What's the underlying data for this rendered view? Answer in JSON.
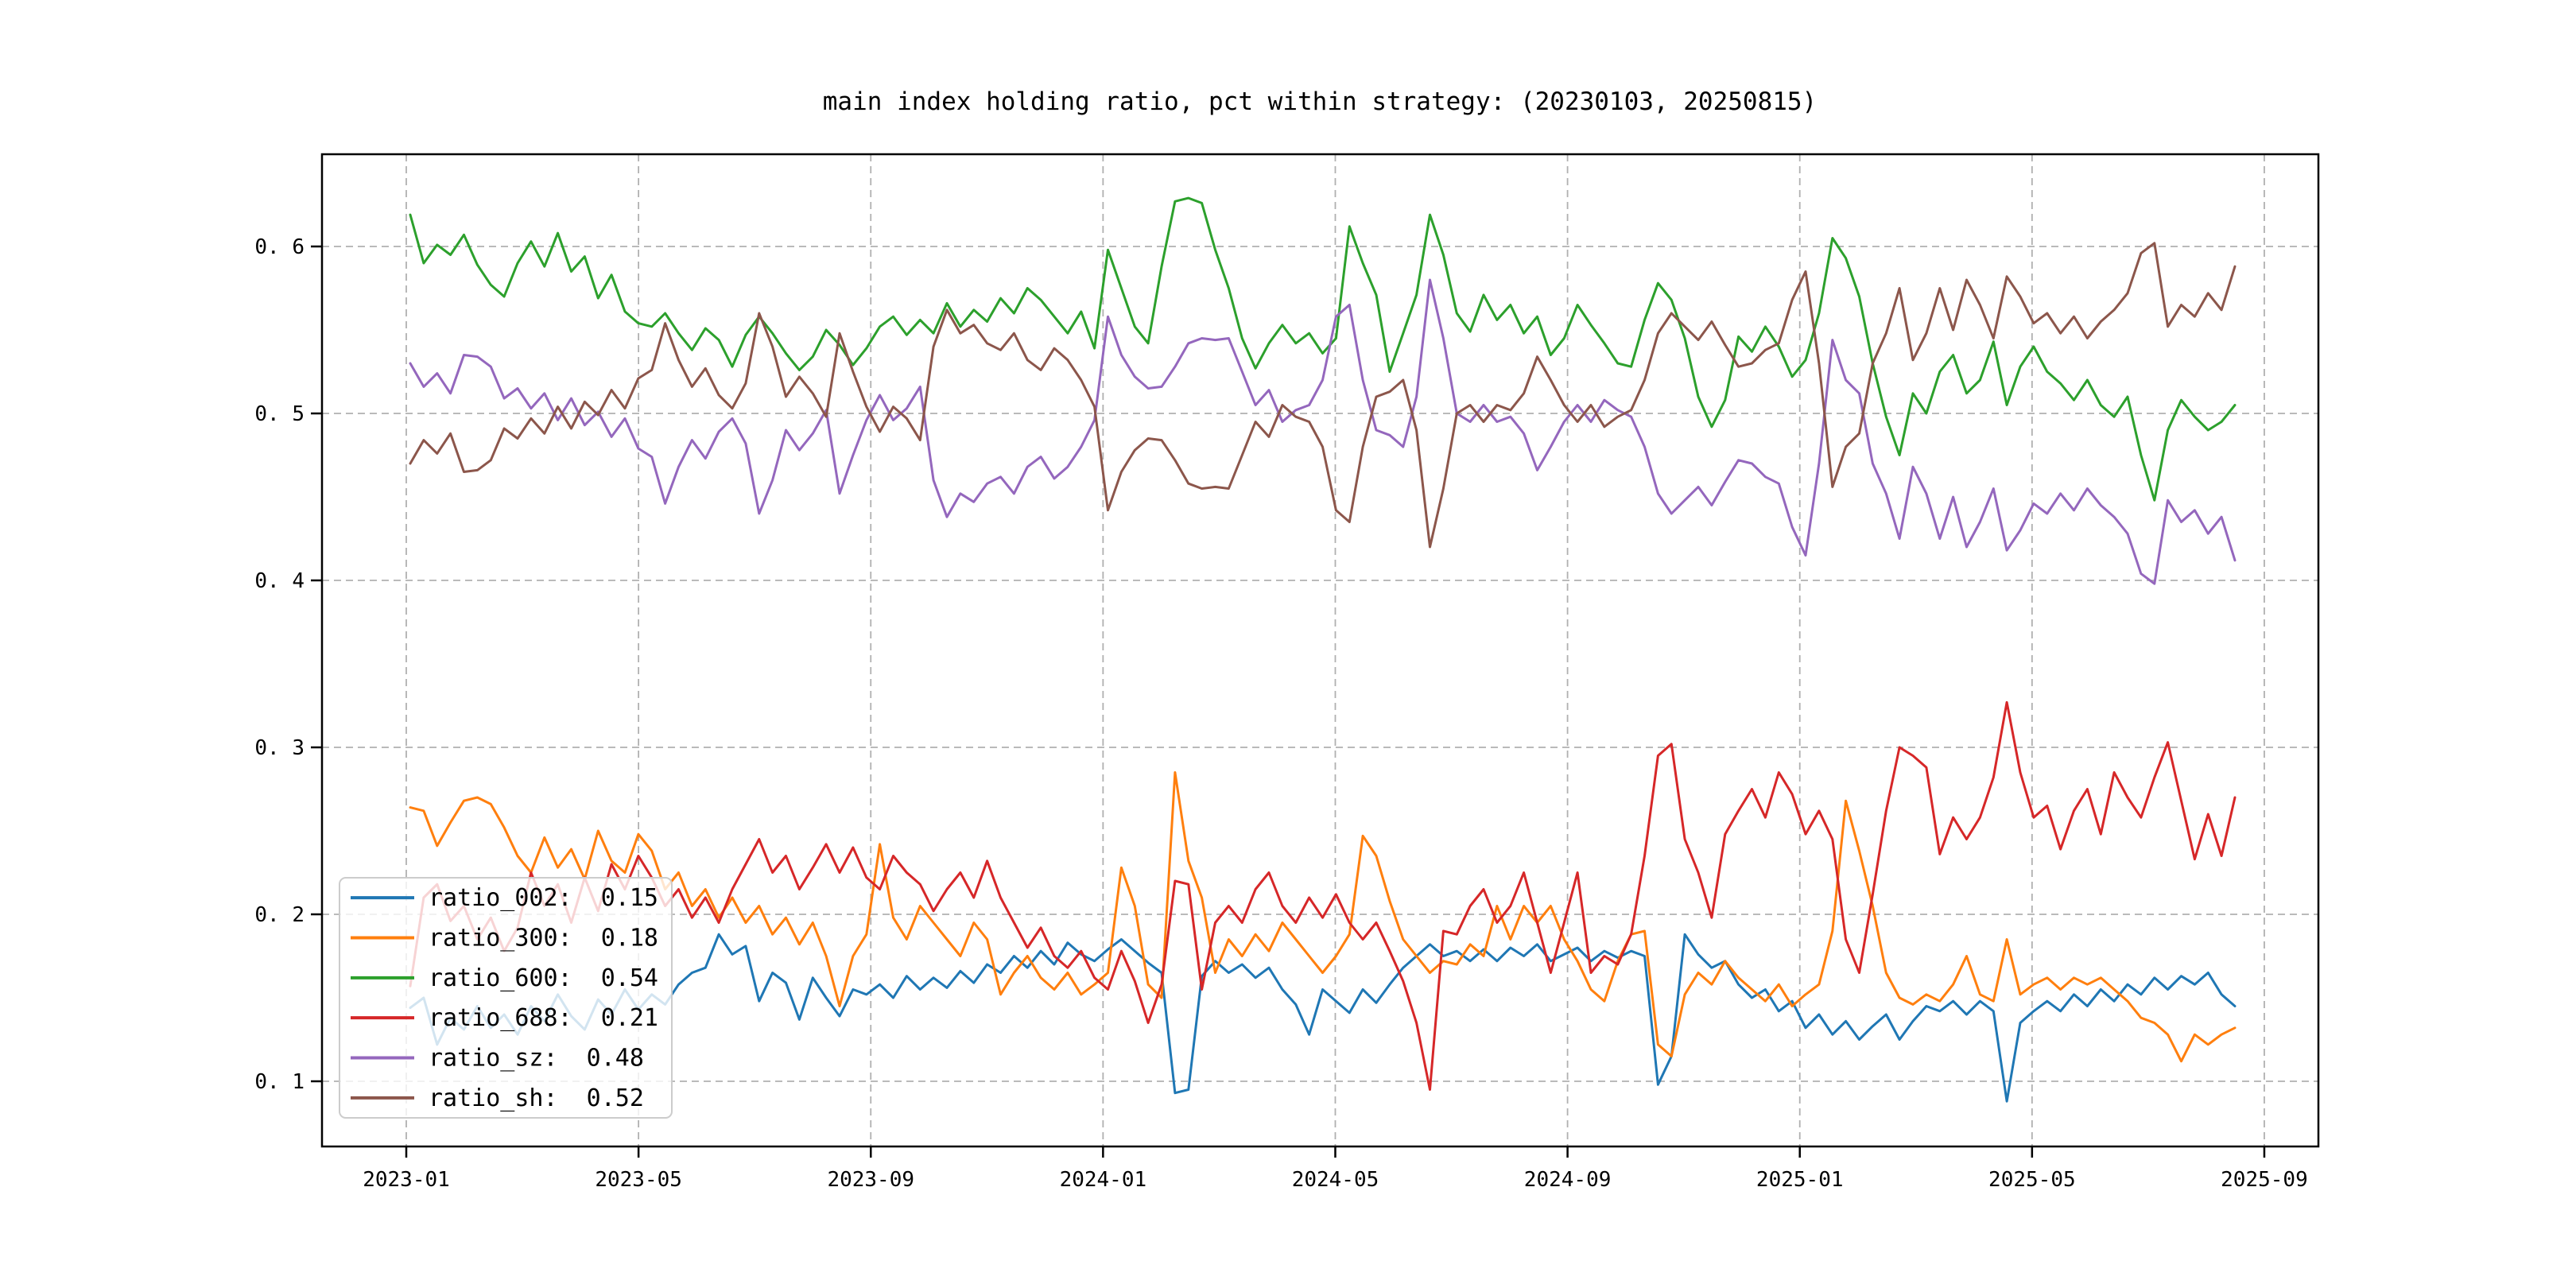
{
  "title": "main index holding ratio, pct within strategy: (20230103, 20250815)",
  "axes": {
    "x_tick_labels": [
      "2023-01",
      "2023-05",
      "2023-09",
      "2024-01",
      "2024-05",
      "2024-09",
      "2025-01",
      "2025-05",
      "2025-09"
    ],
    "y_tick_labels": [
      "0. 1",
      "0. 2",
      "0. 3",
      "0. 4",
      "0. 5",
      "0. 6"
    ],
    "grid_color": "#b0b0b0",
    "spine_color": "#000000"
  },
  "legend": {
    "entries": [
      {
        "series": "ratio_002",
        "label": "ratio_002:  0.15",
        "color": "#1f77b4"
      },
      {
        "series": "ratio_300",
        "label": "ratio_300:  0.18",
        "color": "#ff7f0e"
      },
      {
        "series": "ratio_600",
        "label": "ratio_600:  0.54",
        "color": "#2ca02c"
      },
      {
        "series": "ratio_688",
        "label": "ratio_688:  0.21",
        "color": "#d62728"
      },
      {
        "series": "ratio_sz",
        "label": "ratio_sz:  0.48",
        "color": "#9467bd"
      },
      {
        "series": "ratio_sh",
        "label": "ratio_sh:  0.52",
        "color": "#8c564b"
      }
    ]
  },
  "chart_data": {
    "type": "line",
    "title": "main index holding ratio, pct within strategy: (20230103, 20250815)",
    "x_start": "2023-01-03",
    "x_end": "2025-08-15",
    "x_step_days": 7,
    "xlabel": "",
    "ylabel": "",
    "ylim": [
      0.063,
      0.658
    ],
    "y_ticks": [
      0.1,
      0.2,
      0.3,
      0.4,
      0.5,
      0.6
    ],
    "x_tick_months": [
      0,
      4,
      8,
      12,
      16,
      20,
      24,
      28,
      32
    ],
    "grid": true,
    "legend_position": "lower left",
    "series": [
      {
        "name": "ratio_002",
        "color": "#1f77b4",
        "values": [
          0.144,
          0.15,
          0.122,
          0.138,
          0.131,
          0.145,
          0.132,
          0.14,
          0.128,
          0.145,
          0.136,
          0.152,
          0.139,
          0.131,
          0.149,
          0.14,
          0.155,
          0.143,
          0.152,
          0.146,
          0.158,
          0.165,
          0.168,
          0.188,
          0.176,
          0.181,
          0.148,
          0.165,
          0.159,
          0.137,
          0.162,
          0.15,
          0.139,
          0.155,
          0.152,
          0.158,
          0.15,
          0.163,
          0.155,
          0.162,
          0.156,
          0.166,
          0.159,
          0.17,
          0.165,
          0.175,
          0.168,
          0.178,
          0.17,
          0.183,
          0.176,
          0.172,
          0.179,
          0.185,
          0.178,
          0.171,
          0.165,
          0.093,
          0.095,
          0.163,
          0.172,
          0.165,
          0.17,
          0.162,
          0.168,
          0.155,
          0.146,
          0.128,
          0.155,
          0.148,
          0.141,
          0.155,
          0.147,
          0.158,
          0.168,
          0.175,
          0.182,
          0.175,
          0.178,
          0.172,
          0.179,
          0.172,
          0.18,
          0.175,
          0.182,
          0.172,
          0.176,
          0.18,
          0.172,
          0.178,
          0.174,
          0.178,
          0.175,
          0.098,
          0.115,
          0.188,
          0.176,
          0.168,
          0.172,
          0.158,
          0.15,
          0.155,
          0.142,
          0.148,
          0.132,
          0.14,
          0.128,
          0.136,
          0.125,
          0.133,
          0.14,
          0.125,
          0.136,
          0.145,
          0.142,
          0.148,
          0.14,
          0.148,
          0.142,
          0.088,
          0.135,
          0.142,
          0.148,
          0.142,
          0.152,
          0.145,
          0.155,
          0.148,
          0.158,
          0.152,
          0.162,
          0.155,
          0.163,
          0.158,
          0.165,
          0.152,
          0.145
        ]
      },
      {
        "name": "ratio_300",
        "color": "#ff7f0e",
        "values": [
          0.264,
          0.262,
          0.241,
          0.255,
          0.268,
          0.27,
          0.266,
          0.252,
          0.235,
          0.225,
          0.246,
          0.228,
          0.239,
          0.221,
          0.25,
          0.232,
          0.225,
          0.248,
          0.238,
          0.215,
          0.225,
          0.205,
          0.215,
          0.198,
          0.21,
          0.195,
          0.205,
          0.188,
          0.198,
          0.182,
          0.195,
          0.175,
          0.145,
          0.175,
          0.188,
          0.242,
          0.198,
          0.185,
          0.205,
          0.195,
          0.185,
          0.175,
          0.195,
          0.185,
          0.152,
          0.165,
          0.175,
          0.162,
          0.155,
          0.165,
          0.152,
          0.158,
          0.165,
          0.228,
          0.205,
          0.158,
          0.15,
          0.285,
          0.232,
          0.21,
          0.165,
          0.185,
          0.175,
          0.188,
          0.178,
          0.195,
          0.185,
          0.175,
          0.165,
          0.175,
          0.188,
          0.247,
          0.235,
          0.208,
          0.185,
          0.175,
          0.165,
          0.172,
          0.17,
          0.182,
          0.175,
          0.205,
          0.185,
          0.205,
          0.195,
          0.205,
          0.185,
          0.172,
          0.155,
          0.148,
          0.172,
          0.188,
          0.19,
          0.122,
          0.115,
          0.152,
          0.165,
          0.158,
          0.172,
          0.162,
          0.155,
          0.148,
          0.158,
          0.145,
          0.152,
          0.158,
          0.19,
          0.268,
          0.238,
          0.205,
          0.165,
          0.15,
          0.146,
          0.152,
          0.148,
          0.158,
          0.175,
          0.152,
          0.148,
          0.185,
          0.152,
          0.158,
          0.162,
          0.155,
          0.162,
          0.158,
          0.162,
          0.155,
          0.148,
          0.138,
          0.135,
          0.128,
          0.112,
          0.128,
          0.122,
          0.128,
          0.132
        ]
      },
      {
        "name": "ratio_600",
        "color": "#2ca02c",
        "values": [
          0.619,
          0.59,
          0.601,
          0.595,
          0.607,
          0.589,
          0.577,
          0.57,
          0.59,
          0.603,
          0.588,
          0.608,
          0.585,
          0.594,
          0.569,
          0.583,
          0.561,
          0.554,
          0.552,
          0.56,
          0.548,
          0.538,
          0.551,
          0.544,
          0.528,
          0.547,
          0.558,
          0.548,
          0.536,
          0.526,
          0.534,
          0.55,
          0.541,
          0.529,
          0.539,
          0.552,
          0.558,
          0.547,
          0.556,
          0.548,
          0.566,
          0.552,
          0.562,
          0.555,
          0.569,
          0.56,
          0.575,
          0.568,
          0.558,
          0.548,
          0.561,
          0.539,
          0.598,
          0.575,
          0.552,
          0.542,
          0.588,
          0.627,
          0.629,
          0.626,
          0.598,
          0.575,
          0.545,
          0.527,
          0.542,
          0.553,
          0.542,
          0.548,
          0.536,
          0.545,
          0.612,
          0.59,
          0.571,
          0.525,
          0.548,
          0.571,
          0.619,
          0.595,
          0.56,
          0.549,
          0.571,
          0.556,
          0.565,
          0.548,
          0.558,
          0.535,
          0.545,
          0.565,
          0.553,
          0.542,
          0.53,
          0.528,
          0.556,
          0.578,
          0.568,
          0.545,
          0.51,
          0.492,
          0.508,
          0.546,
          0.537,
          0.552,
          0.54,
          0.522,
          0.532,
          0.56,
          0.605,
          0.593,
          0.57,
          0.53,
          0.498,
          0.475,
          0.512,
          0.5,
          0.525,
          0.535,
          0.512,
          0.52,
          0.543,
          0.505,
          0.528,
          0.54,
          0.525,
          0.518,
          0.508,
          0.52,
          0.505,
          0.498,
          0.51,
          0.475,
          0.448,
          0.49,
          0.508,
          0.498,
          0.49,
          0.495,
          0.505
        ]
      },
      {
        "name": "ratio_688",
        "color": "#d62728",
        "values": [
          0.157,
          0.21,
          0.218,
          0.196,
          0.205,
          0.185,
          0.198,
          0.178,
          0.192,
          0.225,
          0.205,
          0.218,
          0.195,
          0.222,
          0.202,
          0.23,
          0.215,
          0.235,
          0.222,
          0.205,
          0.215,
          0.198,
          0.21,
          0.195,
          0.215,
          0.23,
          0.245,
          0.225,
          0.235,
          0.215,
          0.228,
          0.242,
          0.225,
          0.24,
          0.222,
          0.215,
          0.235,
          0.225,
          0.218,
          0.202,
          0.215,
          0.225,
          0.21,
          0.232,
          0.21,
          0.195,
          0.18,
          0.192,
          0.175,
          0.168,
          0.178,
          0.162,
          0.155,
          0.178,
          0.16,
          0.135,
          0.158,
          0.22,
          0.218,
          0.155,
          0.195,
          0.205,
          0.195,
          0.215,
          0.225,
          0.205,
          0.195,
          0.21,
          0.198,
          0.212,
          0.195,
          0.185,
          0.195,
          0.178,
          0.16,
          0.135,
          0.095,
          0.19,
          0.188,
          0.205,
          0.215,
          0.195,
          0.205,
          0.225,
          0.195,
          0.165,
          0.195,
          0.225,
          0.165,
          0.175,
          0.17,
          0.188,
          0.235,
          0.295,
          0.302,
          0.245,
          0.225,
          0.198,
          0.248,
          0.262,
          0.275,
          0.258,
          0.285,
          0.272,
          0.248,
          0.262,
          0.245,
          0.185,
          0.165,
          0.212,
          0.262,
          0.3,
          0.295,
          0.288,
          0.236,
          0.258,
          0.245,
          0.258,
          0.282,
          0.327,
          0.285,
          0.258,
          0.265,
          0.239,
          0.262,
          0.275,
          0.248,
          0.285,
          0.27,
          0.258,
          0.282,
          0.303,
          0.268,
          0.233,
          0.26,
          0.235,
          0.27
        ]
      },
      {
        "name": "ratio_sz",
        "color": "#9467bd",
        "values": [
          0.53,
          0.516,
          0.524,
          0.512,
          0.535,
          0.534,
          0.528,
          0.509,
          0.515,
          0.503,
          0.512,
          0.496,
          0.509,
          0.493,
          0.501,
          0.486,
          0.497,
          0.479,
          0.474,
          0.446,
          0.468,
          0.484,
          0.473,
          0.489,
          0.497,
          0.482,
          0.44,
          0.46,
          0.49,
          0.478,
          0.488,
          0.502,
          0.452,
          0.475,
          0.496,
          0.511,
          0.496,
          0.503,
          0.516,
          0.46,
          0.438,
          0.452,
          0.447,
          0.458,
          0.462,
          0.452,
          0.468,
          0.474,
          0.461,
          0.468,
          0.48,
          0.496,
          0.558,
          0.535,
          0.522,
          0.515,
          0.516,
          0.528,
          0.542,
          0.545,
          0.544,
          0.545,
          0.525,
          0.505,
          0.514,
          0.495,
          0.502,
          0.505,
          0.52,
          0.558,
          0.565,
          0.52,
          0.49,
          0.487,
          0.48,
          0.51,
          0.58,
          0.545,
          0.5,
          0.495,
          0.505,
          0.495,
          0.498,
          0.488,
          0.466,
          0.48,
          0.495,
          0.505,
          0.495,
          0.508,
          0.502,
          0.498,
          0.48,
          0.452,
          0.44,
          0.448,
          0.456,
          0.445,
          0.459,
          0.472,
          0.47,
          0.462,
          0.458,
          0.432,
          0.415,
          0.47,
          0.544,
          0.52,
          0.512,
          0.47,
          0.452,
          0.425,
          0.468,
          0.452,
          0.425,
          0.45,
          0.42,
          0.435,
          0.455,
          0.418,
          0.43,
          0.446,
          0.44,
          0.452,
          0.442,
          0.455,
          0.445,
          0.438,
          0.428,
          0.404,
          0.398,
          0.448,
          0.435,
          0.442,
          0.428,
          0.438,
          0.412
        ]
      },
      {
        "name": "ratio_sh",
        "color": "#8c564b",
        "values": [
          0.47,
          0.484,
          0.476,
          0.488,
          0.465,
          0.466,
          0.472,
          0.491,
          0.485,
          0.497,
          0.488,
          0.504,
          0.491,
          0.507,
          0.499,
          0.514,
          0.503,
          0.521,
          0.526,
          0.554,
          0.532,
          0.516,
          0.527,
          0.511,
          0.503,
          0.518,
          0.56,
          0.54,
          0.51,
          0.522,
          0.512,
          0.498,
          0.548,
          0.525,
          0.504,
          0.489,
          0.504,
          0.497,
          0.484,
          0.54,
          0.562,
          0.548,
          0.553,
          0.542,
          0.538,
          0.548,
          0.532,
          0.526,
          0.539,
          0.532,
          0.52,
          0.504,
          0.442,
          0.465,
          0.478,
          0.485,
          0.484,
          0.472,
          0.458,
          0.455,
          0.456,
          0.455,
          0.475,
          0.495,
          0.486,
          0.505,
          0.498,
          0.495,
          0.48,
          0.442,
          0.435,
          0.48,
          0.51,
          0.513,
          0.52,
          0.49,
          0.42,
          0.455,
          0.5,
          0.505,
          0.495,
          0.505,
          0.502,
          0.512,
          0.534,
          0.52,
          0.505,
          0.495,
          0.505,
          0.492,
          0.498,
          0.502,
          0.52,
          0.548,
          0.56,
          0.552,
          0.544,
          0.555,
          0.541,
          0.528,
          0.53,
          0.538,
          0.542,
          0.568,
          0.585,
          0.53,
          0.456,
          0.48,
          0.488,
          0.53,
          0.548,
          0.575,
          0.532,
          0.548,
          0.575,
          0.55,
          0.58,
          0.565,
          0.545,
          0.582,
          0.57,
          0.554,
          0.56,
          0.548,
          0.558,
          0.545,
          0.555,
          0.562,
          0.572,
          0.596,
          0.602,
          0.552,
          0.565,
          0.558,
          0.572,
          0.562,
          0.588
        ]
      }
    ]
  }
}
